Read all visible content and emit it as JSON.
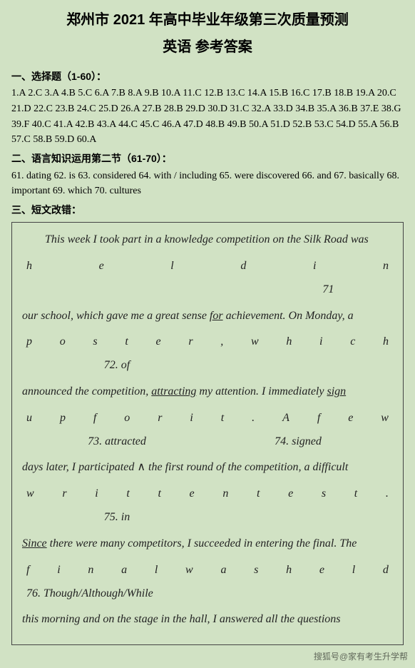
{
  "header": {
    "title_line1": "郑州市 2021 年高中毕业年级第三次质量预测",
    "title_line2": "英语  参考答案"
  },
  "section1": {
    "heading": "一、选择题（1-60）：",
    "answers": "1.A 2.C 3.A 4.B 5.C 6.A 7.B 8.A 9.B 10.A 11.C 12.B 13.C 14.A 15.B 16.C 17.B 18.B 19.A 20.C 21.D 22.C 23.B 24.C 25.D 26.A 27.B 28.B 29.D 30.D 31.C 32.A 33.D 34.B 35.A 36.B 37.E 38.G 39.F 40.C 41.A 42.B 43.A 44.C 45.C 46.A 47.D 48.B 49.B 50.A 51.D 52.B 53.C 54.D 55.A 56.B 57.C 58.B 59.D 60.A"
  },
  "section2": {
    "heading": "二、语言知识运用第二节（61-70）：",
    "answers": "61. dating 62. is 63. considered 64. with / including 65. were discovered 66. and 67. basically 68. important 69. which 70. cultures"
  },
  "section3": {
    "heading": "三、短文改错：",
    "para1": "This week I took part in a knowledge competition on the Silk Road was",
    "spread1": [
      "h",
      "e",
      "l",
      "d",
      "i",
      "n"
    ],
    "anno1": "71",
    "para2_pre": "our school, which gave me a great sense ",
    "para2_u": "for",
    "para2_post": " achievement. On Monday, a",
    "spread2": [
      "p",
      "o",
      "s",
      "t",
      "e",
      "r",
      ",",
      "w",
      "h",
      "i",
      "c",
      "h"
    ],
    "anno2": "72. of",
    "para3_pre": "announced the competition, ",
    "para3_u": "attracting",
    "para3_mid": " my attention. I immediately ",
    "para3_u2": "sign",
    "spread3": [
      "u",
      "p",
      "f",
      "o",
      "r",
      "i",
      "t",
      ".",
      "A",
      "f",
      "e",
      "w"
    ],
    "anno3a": "73. attracted",
    "anno3b": "74. signed",
    "para4_pre": "days later, I participated ",
    "para4_caret": "∧",
    "para4_post": " the first round of the competition, a difficult",
    "spread4": [
      "w",
      "r",
      "i",
      "t",
      "t",
      "e",
      "n",
      "t",
      "e",
      "s",
      "t",
      "."
    ],
    "anno4": "75. in",
    "para5_u": "Since",
    "para5_post": " there were many competitors, I succeeded in entering the final. The",
    "spread5": [
      "f",
      "i",
      "n",
      "a",
      "l",
      "w",
      "a",
      "s",
      "h",
      "e",
      "l",
      "d"
    ],
    "anno5": "76. Though/Although/While",
    "para6": "this morning and on the stage in the hall, I answered all the questions"
  },
  "watermark": "搜狐号@家有考生升学帮",
  "style": {
    "background_color": "#d1e2c4",
    "border_color": "#444444",
    "text_color": "#000000",
    "title_fontsize": 20,
    "body_fontsize": 14,
    "essay_fontsize": 16,
    "essay_font": "cursive"
  }
}
